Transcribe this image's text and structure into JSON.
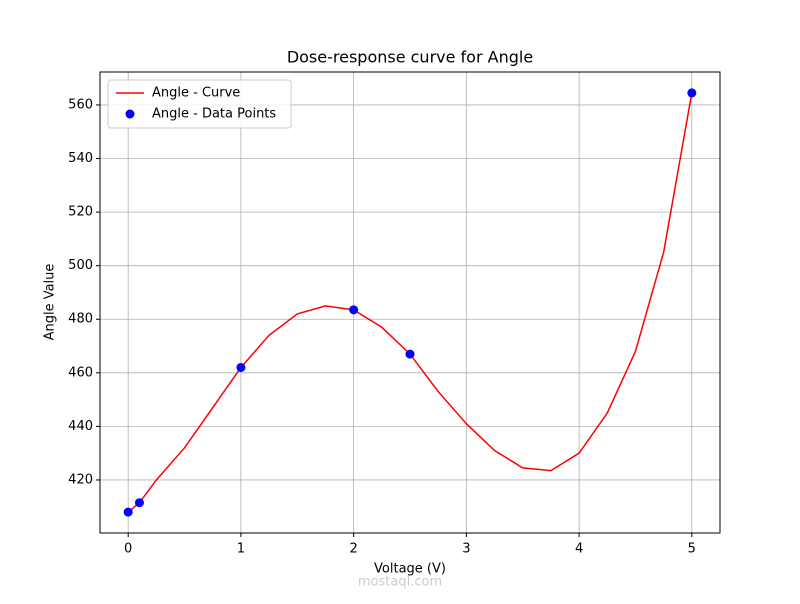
{
  "chart_data": {
    "type": "line",
    "title": "Dose-response curve for Angle",
    "x_label": "Voltage (V)",
    "y_label": "Angle Value",
    "xlim": [
      -0.25,
      5.25
    ],
    "ylim": [
      400.2,
      572.3
    ],
    "xticks": [
      0,
      1,
      2,
      3,
      4,
      5
    ],
    "yticks": [
      420,
      440,
      460,
      480,
      500,
      520,
      540,
      560
    ],
    "grid": true,
    "legend": "upper left",
    "watermark": "mostaql.com",
    "series": [
      {
        "name": "Angle - Curve",
        "color": "#ff0000",
        "style": "line",
        "x": [
          0,
          0.1,
          0.25,
          0.5,
          0.75,
          1,
          1.25,
          1.5,
          1.75,
          2,
          2.25,
          2.5,
          2.75,
          3,
          3.25,
          3.5,
          3.75,
          4,
          4.25,
          4.5,
          4.75,
          5
        ],
        "values": [
          408,
          411.5,
          420,
          432,
          447,
          462,
          474,
          482,
          485,
          483.5,
          477,
          467,
          453,
          441,
          431,
          424.5,
          423.5,
          430,
          445,
          468,
          505,
          564.5
        ]
      },
      {
        "name": "Angle - Data Points",
        "color": "#0000ff",
        "style": "scatter",
        "x": [
          0,
          0.1,
          1,
          2,
          2.5,
          5
        ],
        "values": [
          408,
          411.5,
          462,
          483.5,
          467,
          564.5
        ]
      }
    ]
  }
}
